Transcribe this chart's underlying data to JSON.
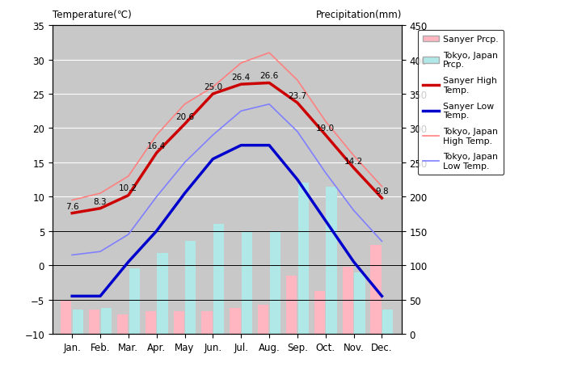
{
  "months": [
    "Jan.",
    "Feb.",
    "Mar.",
    "Apr.",
    "May",
    "Jun.",
    "Jul.",
    "Aug.",
    "Sep.",
    "Oct.",
    "Nov.",
    "Dec."
  ],
  "sanyer_high": [
    7.6,
    8.3,
    10.2,
    16.4,
    20.6,
    25.0,
    26.4,
    26.6,
    23.7,
    19.0,
    14.2,
    9.8
  ],
  "sanyer_low": [
    -4.5,
    -4.5,
    0.5,
    5.0,
    10.5,
    15.5,
    17.5,
    17.5,
    12.5,
    6.5,
    0.5,
    -4.5
  ],
  "tokyo_high": [
    9.5,
    10.5,
    13.0,
    19.0,
    23.5,
    26.0,
    29.5,
    31.0,
    27.0,
    21.0,
    16.0,
    11.5
  ],
  "tokyo_low": [
    1.5,
    2.0,
    4.5,
    10.0,
    15.0,
    19.0,
    22.5,
    23.5,
    19.5,
    13.5,
    8.0,
    3.5
  ],
  "sanyer_prcp_mm": [
    50,
    35,
    28,
    33,
    33,
    33,
    38,
    42,
    85,
    63,
    98,
    130
  ],
  "tokyo_prcp_mm": [
    35,
    38,
    95,
    118,
    135,
    160,
    148,
    150,
    220,
    215,
    90,
    35
  ],
  "title_left": "Temperature(℃)",
  "title_right": "Precipitation(mm)",
  "ylim_left": [
    -10,
    35
  ],
  "ylim_right": [
    0,
    450
  ],
  "bg_color": "#c8c8c8",
  "sanyer_prcp_color": "#ffb6c1",
  "tokyo_prcp_color": "#b0e8e8",
  "sanyer_high_color": "#cc0000",
  "sanyer_low_color": "#0000cc",
  "tokyo_high_color": "#ff8080",
  "tokyo_low_color": "#8080ff"
}
